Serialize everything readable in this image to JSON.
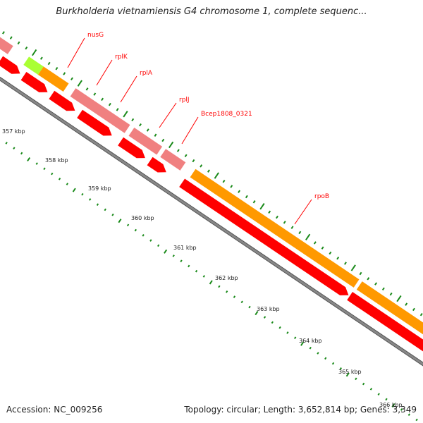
{
  "title": "Burkholderia vietnamiensis G4 chromosome 1, complete sequenc...",
  "footer": {
    "accession": "Accession: NC_009256",
    "summary": "Topology: circular; Length: 3,652,814 bp; Genes: 3,349"
  },
  "colors": {
    "cds_outer": "#ff9900",
    "rna_outer": "#f08080",
    "other_outer": "#aaff33",
    "cds_inner": "#ff0000",
    "backbone": "#888888",
    "tick": "#1a8a1a",
    "gene_label": "#ff0000",
    "label_line": "#ff0000"
  },
  "gene_labels": [
    "nusG",
    "rplK",
    "rplA",
    "rplJ",
    "Bcep1808_0321",
    "rpoB"
  ],
  "position_labels": [
    "357 kbp",
    "358 kbp",
    "359 kbp",
    "360 kbp",
    "361 kbp",
    "362 kbp",
    "363 kbp",
    "364 kbp",
    "365 kbp",
    "366 kbp"
  ]
}
